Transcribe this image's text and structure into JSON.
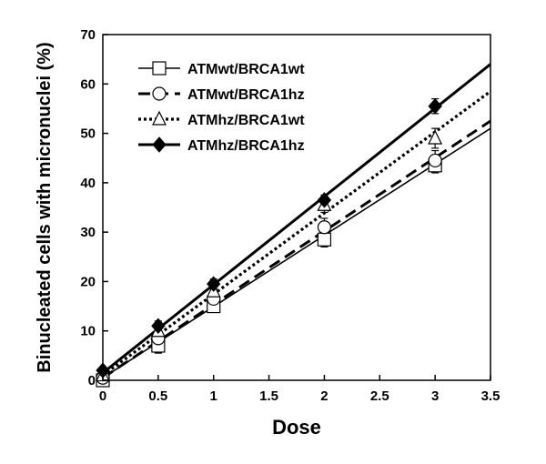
{
  "chart_data": {
    "type": "scatter",
    "title": "",
    "xlabel": "Dose",
    "ylabel": "Binucleated cells with micronuclei (%)",
    "xlim": [
      0,
      3.5
    ],
    "ylim": [
      0,
      70
    ],
    "x_ticks": [
      "0",
      "0.5",
      "1",
      "1.5",
      "2",
      "2.5",
      "3",
      "3.5"
    ],
    "y_ticks": [
      "0",
      "10",
      "20",
      "30",
      "40",
      "50",
      "60",
      "70"
    ],
    "grid": false,
    "legend_placement": "top-left",
    "series": [
      {
        "name": "ATMwt/BRCA1wt",
        "marker": "square-open",
        "line": "solid-thin",
        "x": [
          0,
          0.5,
          1,
          2,
          3
        ],
        "y": [
          0,
          7,
          15,
          28.5,
          43.5
        ],
        "err": [
          0.5,
          1.5,
          1.2,
          1.5,
          1.5
        ],
        "fit": [
          [
            0,
            0.5
          ],
          [
            3.5,
            51
          ]
        ]
      },
      {
        "name": "ATMwt/BRCA1hz",
        "marker": "circle-open",
        "line": "dashed",
        "x": [
          0,
          0.5,
          1,
          2,
          3
        ],
        "y": [
          0.5,
          8.5,
          16.5,
          31,
          44.5
        ],
        "err": [
          0.5,
          1.5,
          1.5,
          1.8,
          2
        ],
        "fit": [
          [
            0,
            0.5
          ],
          [
            3.5,
            52.5
          ]
        ]
      },
      {
        "name": "ATMhz/BRCA1wt",
        "marker": "triangle-open",
        "line": "dotted",
        "x": [
          0,
          0.5,
          1,
          2,
          3
        ],
        "y": [
          1,
          10,
          18,
          35.5,
          49
        ],
        "err": [
          0.5,
          1.2,
          1.5,
          1.5,
          2
        ],
        "fit": [
          [
            0,
            1
          ],
          [
            3.5,
            58.5
          ]
        ]
      },
      {
        "name": "ATMhz/BRCA1hz",
        "marker": "diamond-filled",
        "line": "solid-thick",
        "x": [
          0,
          0.5,
          1,
          2,
          3
        ],
        "y": [
          2,
          11,
          19.5,
          36.5,
          55.5
        ],
        "err": [
          0.5,
          1,
          1,
          1,
          1.5
        ],
        "fit": [
          [
            0,
            1.5
          ],
          [
            3.5,
            64
          ]
        ]
      }
    ]
  }
}
